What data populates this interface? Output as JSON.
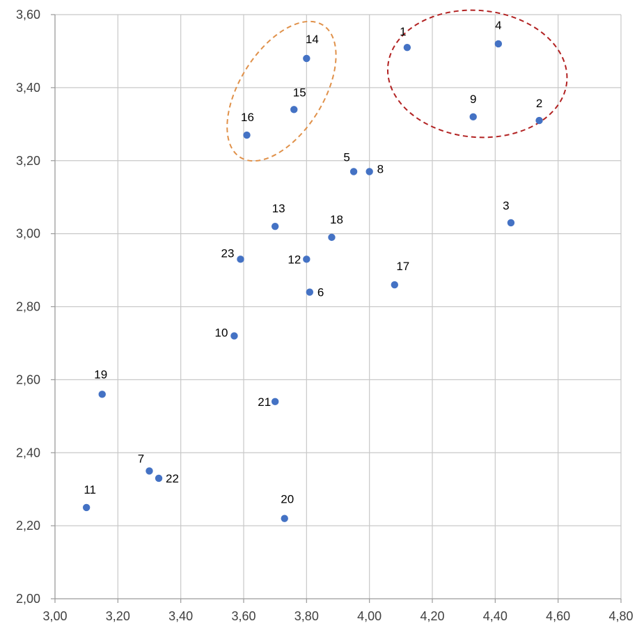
{
  "chart_data": {
    "type": "scatter",
    "title": "",
    "xlabel": "",
    "ylabel": "",
    "xlim": [
      3.0,
      4.8
    ],
    "ylim": [
      2.0,
      3.6
    ],
    "grid": true,
    "x_ticks": [
      "3,00",
      "3,20",
      "3,40",
      "3,60",
      "3,80",
      "4,00",
      "4,20",
      "4,40",
      "4,60",
      "4,80"
    ],
    "y_ticks": [
      "2,00",
      "2,20",
      "2,40",
      "2,60",
      "2,80",
      "3,00",
      "3,20",
      "3,40",
      "3,60"
    ],
    "point_color": "#4472C4",
    "points": [
      {
        "label": "1",
        "x": 4.12,
        "y": 3.51
      },
      {
        "label": "2",
        "x": 4.54,
        "y": 3.31
      },
      {
        "label": "3",
        "x": 4.45,
        "y": 3.03
      },
      {
        "label": "4",
        "x": 4.41,
        "y": 3.52
      },
      {
        "label": "5",
        "x": 3.95,
        "y": 3.17
      },
      {
        "label": "6",
        "x": 3.81,
        "y": 2.84
      },
      {
        "label": "7",
        "x": 3.3,
        "y": 2.35
      },
      {
        "label": "8",
        "x": 4.0,
        "y": 3.17
      },
      {
        "label": "9",
        "x": 4.33,
        "y": 3.32
      },
      {
        "label": "10",
        "x": 3.57,
        "y": 2.72
      },
      {
        "label": "11",
        "x": 3.1,
        "y": 2.25
      },
      {
        "label": "12",
        "x": 3.8,
        "y": 2.93
      },
      {
        "label": "13",
        "x": 3.7,
        "y": 3.02
      },
      {
        "label": "14",
        "x": 3.8,
        "y": 3.48
      },
      {
        "label": "15",
        "x": 3.76,
        "y": 3.34
      },
      {
        "label": "16",
        "x": 3.61,
        "y": 3.27
      },
      {
        "label": "17",
        "x": 4.08,
        "y": 2.86
      },
      {
        "label": "18",
        "x": 3.88,
        "y": 2.99
      },
      {
        "label": "19",
        "x": 3.15,
        "y": 2.56
      },
      {
        "label": "20",
        "x": 3.73,
        "y": 2.22
      },
      {
        "label": "21",
        "x": 3.7,
        "y": 2.54
      },
      {
        "label": "22",
        "x": 3.33,
        "y": 2.33
      },
      {
        "label": "23",
        "x": 3.59,
        "y": 2.93
      }
    ],
    "annotations": [
      {
        "shape": "dashed-ellipse",
        "color": "#E0914A",
        "encloses": [
          "14",
          "15",
          "16"
        ]
      },
      {
        "shape": "dashed-ellipse",
        "color": "#B22222",
        "encloses": [
          "1",
          "2",
          "4",
          "9"
        ]
      }
    ]
  }
}
